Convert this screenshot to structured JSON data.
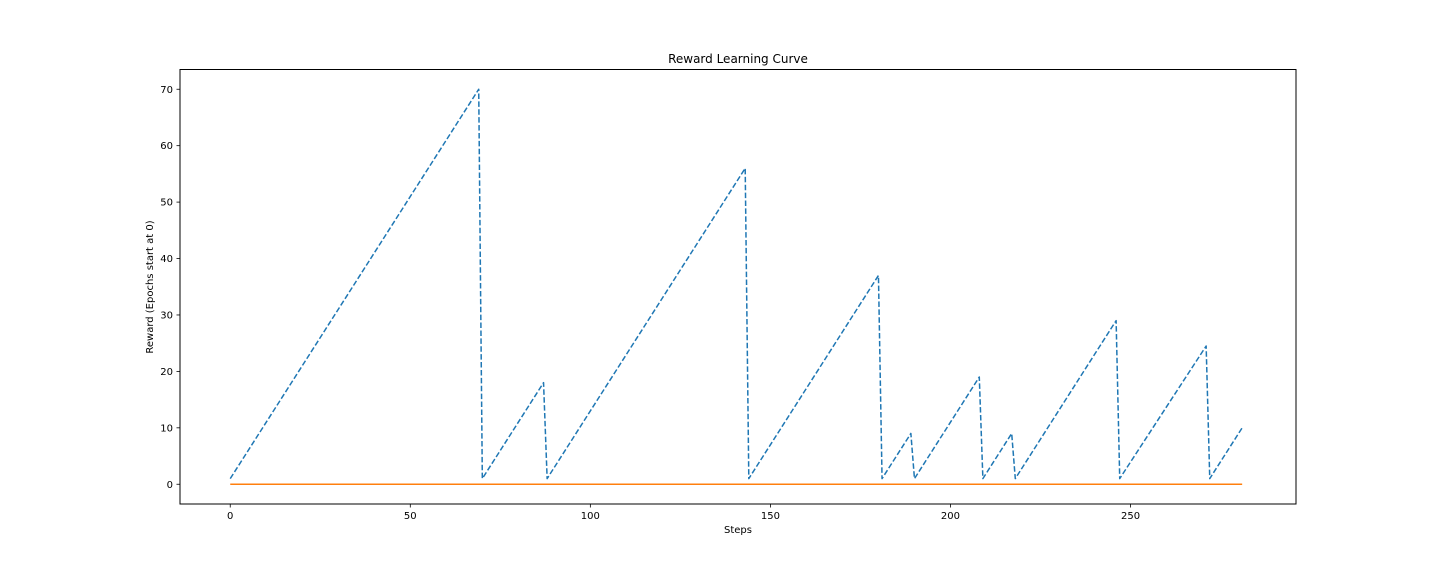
{
  "chart_data": {
    "type": "line",
    "title": "Reward Learning Curve",
    "xlabel": "Steps",
    "ylabel": "Reward (Epochs start at 0)",
    "xlim": [
      -13.95,
      295.95
    ],
    "ylim": [
      -3.5,
      73.5
    ],
    "xticks": [
      0,
      50,
      100,
      150,
      200,
      250
    ],
    "yticks": [
      0,
      10,
      20,
      30,
      40,
      50,
      60,
      70
    ],
    "grid": false,
    "legend": "none",
    "series": [
      {
        "color": "#1f77b4",
        "linestyle": "dashed",
        "points": [
          [
            0,
            1
          ],
          [
            69,
            70
          ],
          [
            70,
            1
          ],
          [
            87,
            18
          ],
          [
            88,
            1
          ],
          [
            143,
            56
          ],
          [
            144,
            1
          ],
          [
            180,
            37
          ],
          [
            181,
            1
          ],
          [
            189,
            9
          ],
          [
            190,
            1
          ],
          [
            208,
            19
          ],
          [
            209,
            1
          ],
          [
            217,
            9
          ],
          [
            218,
            1
          ],
          [
            246,
            29
          ],
          [
            247,
            1
          ],
          [
            271,
            24.5
          ],
          [
            272,
            1
          ],
          [
            281,
            10
          ]
        ]
      },
      {
        "color": "#ff7f0e",
        "linestyle": "solid",
        "points": [
          [
            0,
            0
          ],
          [
            281,
            0
          ]
        ]
      }
    ]
  }
}
